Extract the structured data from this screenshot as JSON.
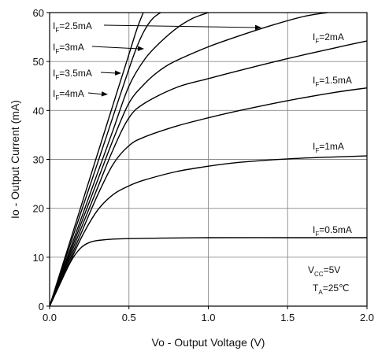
{
  "chart_data": {
    "type": "line",
    "xlabel": "Vo - Output Voltage (V)",
    "ylabel": "Io - Output Current (mA)",
    "xlim": [
      0,
      2.0
    ],
    "ylim": [
      0,
      60
    ],
    "grid": true,
    "x_ticks": [
      "0.0",
      "0.5",
      "1.0",
      "1.5",
      "2.0"
    ],
    "y_ticks": [
      "0",
      "10",
      "20",
      "30",
      "40",
      "50",
      "60"
    ],
    "conditions": {
      "vcc": {
        "main": "V",
        "sub": "CC",
        "value": "=5V"
      },
      "ta": {
        "main": "T",
        "sub": "A",
        "value": "=25℃"
      }
    },
    "series": [
      {
        "name": "IF=0.5mA",
        "label_main": "I",
        "label_sub": "F",
        "label_value": "=0.5mA",
        "label_pos": "right",
        "x": [
          0,
          0.05,
          0.1,
          0.15,
          0.2,
          0.25,
          0.3,
          0.4,
          0.5,
          0.7,
          1.0,
          1.5,
          2.0
        ],
        "y": [
          0,
          3.5,
          7,
          10,
          12,
          13,
          13.4,
          13.7,
          13.8,
          13.9,
          14,
          14,
          14
        ]
      },
      {
        "name": "IF=1mA",
        "label_main": "I",
        "label_sub": "F",
        "label_value": "=1mA",
        "label_pos": "right",
        "x": [
          0,
          0.1,
          0.2,
          0.3,
          0.4,
          0.5,
          0.6,
          0.8,
          1.0,
          1.2,
          1.5,
          1.8,
          2.0
        ],
        "y": [
          0,
          7,
          14,
          19.5,
          22.8,
          24.6,
          25.8,
          27.5,
          28.6,
          29.4,
          30.1,
          30.5,
          30.7
        ]
      },
      {
        "name": "IF=1.5mA",
        "label_main": "I",
        "label_sub": "F",
        "label_value": "=1.5mA",
        "label_pos": "right",
        "x": [
          0,
          0.1,
          0.2,
          0.3,
          0.4,
          0.5,
          0.6,
          0.8,
          1.0,
          1.2,
          1.5,
          1.8,
          2.0
        ],
        "y": [
          0,
          7.5,
          15,
          22.5,
          29,
          32.8,
          34.6,
          36.8,
          38.5,
          40,
          42,
          43.7,
          44.6
        ]
      },
      {
        "name": "IF=2mA",
        "label_main": "I",
        "label_sub": "F",
        "label_value": "=2mA",
        "label_pos": "right",
        "x": [
          0,
          0.1,
          0.2,
          0.3,
          0.4,
          0.5,
          0.6,
          0.8,
          1.0,
          1.2,
          1.5,
          1.8,
          2.0
        ],
        "y": [
          0,
          8,
          16,
          24,
          32,
          38.5,
          41.5,
          44.7,
          46.5,
          48.2,
          50.6,
          52.8,
          54.2
        ]
      },
      {
        "name": "IF=2.5mA",
        "label_main": "I",
        "label_sub": "F",
        "label_value": "=2.5mA",
        "label_pos": "arrow",
        "x": [
          0,
          0.1,
          0.2,
          0.3,
          0.4,
          0.5,
          0.6,
          0.7,
          0.8,
          1.0,
          1.2,
          1.4,
          1.6,
          1.75
        ],
        "y": [
          0,
          8.5,
          17,
          25.5,
          34,
          41.5,
          45.5,
          48.3,
          50.2,
          53,
          55.3,
          57.4,
          59.2,
          60
        ]
      },
      {
        "name": "IF=3mA",
        "label_main": "I",
        "label_sub": "F",
        "label_value": "=3mA",
        "label_pos": "arrow",
        "x": [
          0,
          0.1,
          0.2,
          0.3,
          0.4,
          0.5,
          0.6,
          0.7,
          0.8,
          0.9,
          1.0
        ],
        "y": [
          0,
          9,
          18,
          27,
          36,
          45,
          50.5,
          54,
          56.8,
          58.8,
          60
        ]
      },
      {
        "name": "IF=3.5mA",
        "label_main": "I",
        "label_sub": "F",
        "label_value": "=3.5mA",
        "label_pos": "arrow",
        "x": [
          0,
          0.1,
          0.2,
          0.3,
          0.4,
          0.5,
          0.55,
          0.6,
          0.65,
          0.7
        ],
        "y": [
          0,
          9.7,
          19.4,
          29,
          38.8,
          48.5,
          53,
          56.5,
          58.8,
          60
        ]
      },
      {
        "name": "IF=4mA",
        "label_main": "I",
        "label_sub": "F",
        "label_value": "=4mA",
        "label_pos": "arrow",
        "x": [
          0,
          0.1,
          0.2,
          0.3,
          0.4,
          0.5,
          0.55,
          0.59
        ],
        "y": [
          0,
          10.3,
          20.6,
          30.9,
          41.2,
          51.5,
          56.6,
          60
        ]
      }
    ]
  }
}
